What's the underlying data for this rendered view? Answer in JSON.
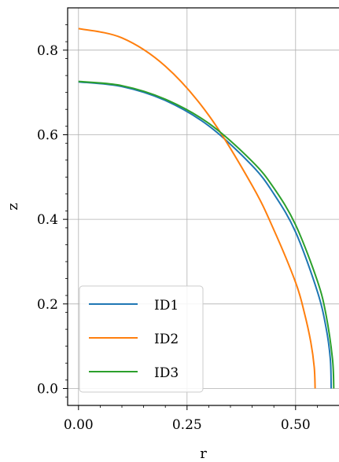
{
  "chart_data": {
    "type": "line",
    "title": "",
    "xlabel": "r",
    "ylabel": "z",
    "xlim": [
      -0.025,
      0.6
    ],
    "ylim": [
      -0.04,
      0.9
    ],
    "grid": true,
    "legend_position": "lower-left",
    "x_ticks": [
      0.0,
      0.25,
      0.5
    ],
    "x_tick_labels": [
      "0.00",
      "0.25",
      "0.50"
    ],
    "y_ticks": [
      0.0,
      0.2,
      0.4,
      0.6,
      0.8
    ],
    "y_tick_labels": [
      "0.0",
      "0.2",
      "0.4",
      "0.6",
      "0.8"
    ],
    "series": [
      {
        "name": "ID1",
        "color": "#1f77b4",
        "points": [
          [
            0.0,
            0.725
          ],
          [
            0.1,
            0.714
          ],
          [
            0.2,
            0.681
          ],
          [
            0.3,
            0.621
          ],
          [
            0.4,
            0.527
          ],
          [
            0.45,
            0.46
          ],
          [
            0.5,
            0.37
          ],
          [
            0.55,
            0.23
          ],
          [
            0.57,
            0.145
          ],
          [
            0.58,
            0.07
          ],
          [
            0.582,
            0.0
          ]
        ]
      },
      {
        "name": "ID2",
        "color": "#ff7f0e",
        "points": [
          [
            0.0,
            0.851
          ],
          [
            0.1,
            0.829
          ],
          [
            0.2,
            0.762
          ],
          [
            0.3,
            0.646
          ],
          [
            0.4,
            0.48
          ],
          [
            0.45,
            0.375
          ],
          [
            0.5,
            0.251
          ],
          [
            0.52,
            0.18
          ],
          [
            0.535,
            0.11
          ],
          [
            0.543,
            0.05
          ],
          [
            0.545,
            0.0
          ]
        ]
      },
      {
        "name": "ID3",
        "color": "#2ca02c",
        "points": [
          [
            0.0,
            0.726
          ],
          [
            0.1,
            0.716
          ],
          [
            0.2,
            0.684
          ],
          [
            0.3,
            0.627
          ],
          [
            0.4,
            0.537
          ],
          [
            0.45,
            0.474
          ],
          [
            0.5,
            0.387
          ],
          [
            0.55,
            0.255
          ],
          [
            0.57,
            0.175
          ],
          [
            0.585,
            0.07
          ],
          [
            0.588,
            0.0
          ]
        ]
      }
    ]
  }
}
